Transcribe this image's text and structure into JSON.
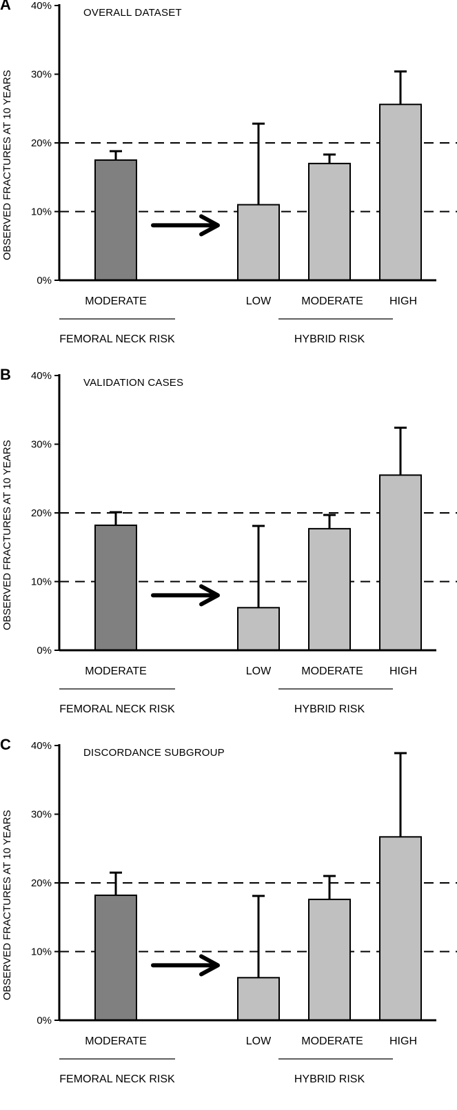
{
  "chart_data": [
    {
      "type": "bar",
      "panel_letter": "A",
      "title": "OVERALL DATASET",
      "ylabel": "OBSERVED FRACTURES AT 10 YEARS",
      "ylim": [
        0,
        40
      ],
      "yticks": [
        "0%",
        "10%",
        "20%",
        "30%",
        "40%"
      ],
      "reference_lines": [
        10,
        20
      ],
      "categories": [
        "MODERATE",
        "LOW",
        "MODERATE",
        "HIGH"
      ],
      "groups": [
        {
          "label": "FEMORAL NECK RISK",
          "categories": [
            0
          ]
        },
        {
          "label": "HYBRID RISK",
          "categories": [
            1,
            2,
            3
          ]
        }
      ],
      "values": [
        17.5,
        11.0,
        17.0,
        25.6
      ],
      "error_upper": [
        18.8,
        22.8,
        18.3,
        30.4
      ],
      "colors": [
        "#808080",
        "#c0c0c0",
        "#c0c0c0",
        "#c0c0c0"
      ]
    },
    {
      "type": "bar",
      "panel_letter": "B",
      "title": "VALIDATION CASES",
      "ylabel": "OBSERVED FRACTURES AT 10 YEARS",
      "ylim": [
        0,
        40
      ],
      "yticks": [
        "0%",
        "10%",
        "20%",
        "30%",
        "40%"
      ],
      "reference_lines": [
        10,
        20
      ],
      "categories": [
        "MODERATE",
        "LOW",
        "MODERATE",
        "HIGH"
      ],
      "groups": [
        {
          "label": "FEMORAL NECK RISK",
          "categories": [
            0
          ]
        },
        {
          "label": "HYBRID RISK",
          "categories": [
            1,
            2,
            3
          ]
        }
      ],
      "values": [
        18.2,
        6.2,
        17.7,
        25.5
      ],
      "error_upper": [
        20.1,
        18.1,
        19.7,
        32.4
      ],
      "colors": [
        "#808080",
        "#c0c0c0",
        "#c0c0c0",
        "#c0c0c0"
      ]
    },
    {
      "type": "bar",
      "panel_letter": "C",
      "title": "DISCORDANCE SUBGROUP",
      "ylabel": "OBSERVED FRACTURES AT 10 YEARS",
      "ylim": [
        0,
        40
      ],
      "yticks": [
        "0%",
        "10%",
        "20%",
        "30%",
        "40%"
      ],
      "reference_lines": [
        10,
        20
      ],
      "categories": [
        "MODERATE",
        "LOW",
        "MODERATE",
        "HIGH"
      ],
      "groups": [
        {
          "label": "FEMORAL NECK RISK",
          "categories": [
            0
          ]
        },
        {
          "label": "HYBRID RISK",
          "categories": [
            1,
            2,
            3
          ]
        }
      ],
      "values": [
        18.2,
        6.2,
        17.6,
        26.7
      ],
      "error_upper": [
        21.5,
        18.1,
        21.0,
        38.9
      ],
      "colors": [
        "#808080",
        "#c0c0c0",
        "#c0c0c0",
        "#c0c0c0"
      ]
    }
  ]
}
